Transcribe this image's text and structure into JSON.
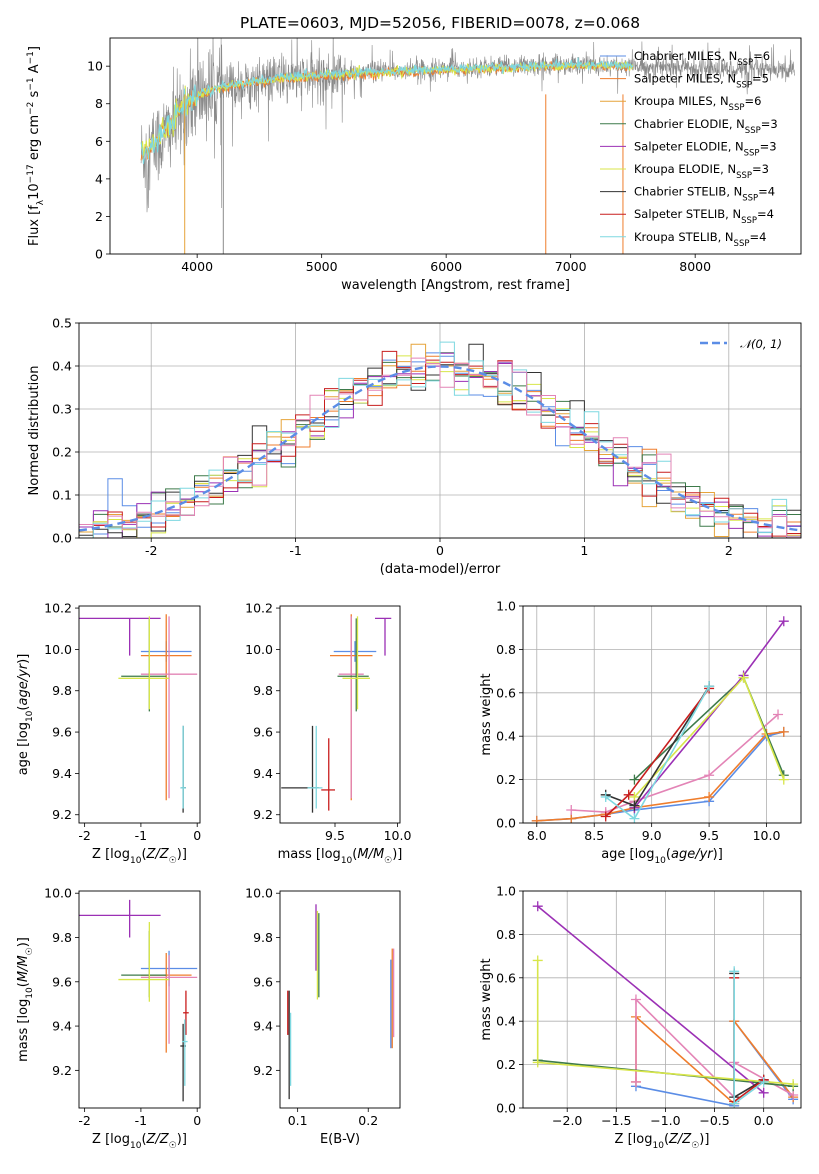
{
  "figure": {
    "title": "PLATE=0603, MJD=52056, FIBERID=0078, z=0.068"
  },
  "colors": {
    "chabrier_miles": "#5b8de6",
    "salpeter_miles": "#ef7d2c",
    "kroupa_miles": "#e6a43a",
    "chabrier_elodie": "#3d7a4a",
    "salpeter_elodie": "#9b30b5",
    "kroupa_elodie": "#d8e64a",
    "chabrier_stelib": "#333333",
    "salpeter_stelib": "#c81e1e",
    "kroupa_stelib": "#7ed8e0",
    "spectrum": "#8a8a8a",
    "pink": "#e384b6",
    "gauss": "#5b8de6",
    "grid": "#b0b0b0"
  },
  "chart_data": [
    {
      "id": "spectrum",
      "type": "line",
      "title": "PLATE=0603, MJD=52056, FIBERID=0078, z=0.068",
      "xlabel": "wavelength [Angstrom, rest frame]",
      "ylabel": "Flux [fλ10⁻¹⁷ erg cm⁻² s⁻¹ A⁻¹]",
      "xlim": [
        3300,
        8850
      ],
      "ylim": [
        0,
        11.5
      ],
      "xticks": [
        4000,
        5000,
        6000,
        7000,
        8000
      ],
      "yticks": [
        0,
        2,
        4,
        6,
        8,
        10
      ],
      "grid": false,
      "legend_position": "top-right",
      "legend": [
        {
          "label": "Chabrier MILES, N",
          "sub": "SSP",
          "suffix": "=6",
          "color_key": "chabrier_miles"
        },
        {
          "label": "Salpeter MILES, N",
          "sub": "SSP",
          "suffix": "=5",
          "color_key": "salpeter_miles"
        },
        {
          "label": "Kroupa MILES, N",
          "sub": "SSP",
          "suffix": "=6",
          "color_key": "kroupa_miles"
        },
        {
          "label": "Chabrier ELODIE, N",
          "sub": "SSP",
          "suffix": "=3",
          "color_key": "chabrier_elodie"
        },
        {
          "label": "Salpeter ELODIE, N",
          "sub": "SSP",
          "suffix": "=3",
          "color_key": "salpeter_elodie"
        },
        {
          "label": "Kroupa ELODIE, N",
          "sub": "SSP",
          "suffix": "=3",
          "color_key": "kroupa_elodie"
        },
        {
          "label": "Chabrier STELIB, N",
          "sub": "SSP",
          "suffix": "=4",
          "color_key": "chabrier_stelib"
        },
        {
          "label": "Salpeter STELIB, N",
          "sub": "SSP",
          "suffix": "=4",
          "color_key": "salpeter_stelib"
        },
        {
          "label": "Kroupa STELIB, N",
          "sub": "SSP",
          "suffix": "=4",
          "color_key": "kroupa_stelib"
        }
      ],
      "observed_spectrum_envelope": {
        "x": [
          3550,
          3700,
          3850,
          4000,
          4200,
          4500,
          5000,
          5500,
          6000,
          6500,
          7000,
          7500,
          8000,
          8500,
          8800
        ],
        "y": [
          5.2,
          6.0,
          7.2,
          8.4,
          8.8,
          9.2,
          9.5,
          9.7,
          9.9,
          10.0,
          10.1,
          10.0,
          9.9,
          9.8,
          9.7
        ]
      },
      "model_spectrum": {
        "x": [
          3550,
          3650,
          3750,
          3850,
          3950,
          4050,
          4200,
          4400,
          4600,
          4800,
          5000,
          5300,
          5600,
          6000,
          6400,
          6800,
          7200,
          7500
        ],
        "y": [
          5.3,
          5.9,
          6.6,
          7.6,
          8.2,
          8.6,
          8.9,
          9.1,
          9.3,
          9.4,
          9.5,
          9.6,
          9.7,
          9.8,
          9.9,
          10.0,
          10.05,
          10.0
        ]
      }
    },
    {
      "id": "residuals",
      "type": "histogram",
      "xlabel": "(data-model)/error",
      "ylabel": "Normed distribution",
      "xlim": [
        -2.5,
        2.5
      ],
      "ylim": [
        0,
        0.5
      ],
      "xticks": [
        -2,
        -1,
        0,
        1,
        2
      ],
      "yticks": [
        0.0,
        0.1,
        0.2,
        0.3,
        0.4,
        0.5
      ],
      "grid": true,
      "legend_position": "top-right",
      "legend": [
        {
          "label": "𝒩(0, 1)",
          "style": "dashed",
          "color_key": "gauss"
        }
      ],
      "bin_width": 0.1,
      "n_models": 9
    },
    {
      "id": "age_vs_Z",
      "type": "errorbar",
      "xlabel": "Z [log10(Z/Z☉)]",
      "ylabel": "age [log10(age/yr)]",
      "xlim": [
        -2.1,
        0.05
      ],
      "ylim": [
        9.16,
        10.21
      ],
      "xticks": [
        -2,
        -1,
        0
      ],
      "yticks": [
        9.2,
        9.4,
        9.6,
        9.8,
        10.0,
        10.2
      ],
      "points": [
        {
          "x": -0.55,
          "y": 9.99,
          "xerr": [
            0.45,
            0.45
          ],
          "yerr": [
            0.05,
            0.05
          ],
          "color_key": "chabrier_miles"
        },
        {
          "x": -0.55,
          "y": 9.97,
          "xerr": [
            0.45,
            0.45
          ],
          "yerr": [
            0.7,
            0.2
          ],
          "color_key": "salpeter_miles"
        },
        {
          "x": -0.5,
          "y": 9.88,
          "xerr": [
            0.5,
            0.5
          ],
          "yerr": [
            0.6,
            0.28
          ],
          "color_key": "pink"
        },
        {
          "x": -0.85,
          "y": 9.87,
          "xerr": [
            0.5,
            0.3
          ],
          "yerr": [
            0.17,
            0.28
          ],
          "color_key": "chabrier_elodie"
        },
        {
          "x": -1.2,
          "y": 10.15,
          "xerr": [
            0.9,
            0.55
          ],
          "yerr": [
            0.18,
            0.0
          ],
          "color_key": "salpeter_elodie"
        },
        {
          "x": -0.85,
          "y": 9.86,
          "xerr": [
            0.55,
            0.35
          ],
          "yerr": [
            0.15,
            0.3
          ],
          "color_key": "kroupa_elodie"
        },
        {
          "x": -0.25,
          "y": 9.33,
          "xerr": [
            0.03,
            0.05
          ],
          "yerr": [
            0.12,
            0.3
          ],
          "color_key": "chabrier_stelib"
        },
        {
          "x": -0.25,
          "y": 9.33,
          "xerr": [
            0.05,
            0.05
          ],
          "yerr": [
            0.1,
            0.3
          ],
          "color_key": "kroupa_stelib"
        }
      ]
    },
    {
      "id": "age_vs_mass",
      "type": "errorbar",
      "xlabel": "mass [log10(M/M☉)]",
      "ylabel": "",
      "xlim": [
        9.06,
        10.02
      ],
      "ylim": [
        9.16,
        10.21
      ],
      "xticks": [
        9.5,
        10.0
      ],
      "yticks": [
        9.2,
        9.4,
        9.6,
        9.8,
        10.0,
        10.2
      ],
      "points": [
        {
          "x": 9.66,
          "y": 9.99,
          "xerr": [
            0.17,
            0.17
          ],
          "yerr": [
            0.05,
            0.05
          ],
          "color_key": "chabrier_miles"
        },
        {
          "x": 9.63,
          "y": 9.97,
          "xerr": [
            0.17,
            0.17
          ],
          "yerr": [
            0.7,
            0.2
          ],
          "color_key": "salpeter_miles"
        },
        {
          "x": 9.63,
          "y": 9.88,
          "xerr": [
            0.1,
            0.1
          ],
          "yerr": [
            0.6,
            0.28
          ],
          "color_key": "pink"
        },
        {
          "x": 9.67,
          "y": 9.87,
          "xerr": [
            0.15,
            0.1
          ],
          "yerr": [
            0.17,
            0.28
          ],
          "color_key": "chabrier_elodie"
        },
        {
          "x": 9.9,
          "y": 10.15,
          "xerr": [
            0.08,
            0.05
          ],
          "yerr": [
            0.18,
            0.0
          ],
          "color_key": "salpeter_elodie"
        },
        {
          "x": 9.68,
          "y": 9.86,
          "xerr": [
            0.12,
            0.1
          ],
          "yerr": [
            0.15,
            0.3
          ],
          "color_key": "kroupa_elodie"
        },
        {
          "x": 9.32,
          "y": 9.33,
          "xerr": [
            0.25,
            0.05
          ],
          "yerr": [
            0.12,
            0.3
          ],
          "color_key": "chabrier_stelib"
        },
        {
          "x": 9.45,
          "y": 9.32,
          "xerr": [
            0.06,
            0.05
          ],
          "yerr": [
            0.1,
            0.25
          ],
          "color_key": "salpeter_stelib"
        },
        {
          "x": 9.35,
          "y": 9.33,
          "xerr": [
            0.07,
            0.05
          ],
          "yerr": [
            0.1,
            0.3
          ],
          "color_key": "kroupa_stelib"
        }
      ]
    },
    {
      "id": "weight_vs_age",
      "type": "line",
      "xlabel": "age [log10(age/yr)]",
      "ylabel": "mass weight",
      "xlim": [
        7.88,
        10.3
      ],
      "ylim": [
        0,
        1.0
      ],
      "xticks": [
        8.0,
        8.5,
        9.0,
        9.5,
        10.0
      ],
      "yticks": [
        0.0,
        0.2,
        0.4,
        0.6,
        0.8,
        1.0
      ],
      "grid": true,
      "series": [
        {
          "color_key": "chabrier_miles",
          "x": [
            8.0,
            8.3,
            8.6,
            8.85,
            9.5,
            10.0,
            10.15
          ],
          "y": [
            0.01,
            0.02,
            0.04,
            0.06,
            0.1,
            0.4,
            0.42
          ]
        },
        {
          "color_key": "salpeter_miles",
          "x": [
            8.0,
            8.3,
            8.6,
            8.85,
            9.5,
            10.0,
            10.15
          ],
          "y": [
            0.01,
            0.02,
            0.04,
            0.07,
            0.12,
            0.41,
            0.42
          ]
        },
        {
          "color_key": "pink",
          "x": [
            8.3,
            8.6,
            8.85,
            9.5,
            10.1
          ],
          "y": [
            0.06,
            0.05,
            0.1,
            0.22,
            0.5
          ]
        },
        {
          "color_key": "chabrier_elodie",
          "x": [
            8.85,
            9.8,
            10.15
          ],
          "y": [
            0.2,
            0.67,
            0.22
          ]
        },
        {
          "color_key": "salpeter_elodie",
          "x": [
            8.85,
            9.8,
            10.15
          ],
          "y": [
            0.07,
            0.68,
            0.93
          ]
        },
        {
          "color_key": "kroupa_elodie",
          "x": [
            8.85,
            9.8,
            10.15
          ],
          "y": [
            0.12,
            0.67,
            0.2
          ]
        },
        {
          "color_key": "chabrier_stelib",
          "x": [
            8.6,
            8.85,
            9.5
          ],
          "y": [
            0.13,
            0.08,
            0.63
          ]
        },
        {
          "color_key": "salpeter_stelib",
          "x": [
            8.6,
            8.8,
            9.5
          ],
          "y": [
            0.03,
            0.13,
            0.62
          ]
        },
        {
          "color_key": "kroupa_stelib",
          "x": [
            8.6,
            8.85,
            9.5
          ],
          "y": [
            0.12,
            0.02,
            0.63
          ]
        }
      ]
    },
    {
      "id": "mass_vs_Z",
      "type": "errorbar",
      "xlabel": "Z [log10(Z/Z☉)]",
      "ylabel": "mass [log10(M/M☉)]",
      "xlim": [
        -2.1,
        0.05
      ],
      "ylim": [
        9.03,
        10.01
      ],
      "xticks": [
        -2,
        -1,
        0
      ],
      "yticks": [
        9.2,
        9.4,
        9.6,
        9.8,
        10.0
      ],
      "points": [
        {
          "x": -0.5,
          "y": 9.66,
          "xerr": [
            0.5,
            0.5
          ],
          "yerr": [
            0.08,
            0.08
          ],
          "color_key": "chabrier_miles"
        },
        {
          "x": -0.55,
          "y": 9.63,
          "xerr": [
            0.45,
            0.45
          ],
          "yerr": [
            0.35,
            0.1
          ],
          "color_key": "salpeter_miles"
        },
        {
          "x": -0.5,
          "y": 9.62,
          "xerr": [
            0.5,
            0.5
          ],
          "yerr": [
            0.3,
            0.1
          ],
          "color_key": "pink"
        },
        {
          "x": -0.85,
          "y": 9.63,
          "xerr": [
            0.5,
            0.3
          ],
          "yerr": [
            0.1,
            0.2
          ],
          "color_key": "chabrier_elodie"
        },
        {
          "x": -1.2,
          "y": 9.9,
          "xerr": [
            0.9,
            0.55
          ],
          "yerr": [
            0.1,
            0.07
          ],
          "color_key": "salpeter_elodie"
        },
        {
          "x": -0.85,
          "y": 9.61,
          "xerr": [
            0.55,
            0.35
          ],
          "yerr": [
            0.1,
            0.26
          ],
          "color_key": "kroupa_elodie"
        },
        {
          "x": -0.25,
          "y": 9.31,
          "xerr": [
            0.05,
            0.05
          ],
          "yerr": [
            0.25,
            0.1
          ],
          "color_key": "chabrier_stelib"
        },
        {
          "x": -0.2,
          "y": 9.46,
          "xerr": [
            0.05,
            0.05
          ],
          "yerr": [
            0.1,
            0.1
          ],
          "color_key": "salpeter_stelib"
        },
        {
          "x": -0.22,
          "y": 9.33,
          "xerr": [
            0.05,
            0.05
          ],
          "yerr": [
            0.2,
            0.1
          ],
          "color_key": "kroupa_stelib"
        }
      ]
    },
    {
      "id": "mass_vs_ebv",
      "type": "errorbar",
      "xlabel": "E(B-V)",
      "ylabel": "",
      "xlim": [
        0.075,
        0.245
      ],
      "ylim": [
        9.03,
        10.01
      ],
      "xticks": [
        0.1,
        0.2
      ],
      "yticks": [
        9.2,
        9.4,
        9.6,
        9.8,
        10.0
      ],
      "points": [
        {
          "x": 0.234,
          "y": 9.5,
          "xerr": [
            0,
            0
          ],
          "yerr": [
            0.2,
            0.25
          ],
          "color_key": "salpeter_miles"
        },
        {
          "x": 0.232,
          "y": 9.5,
          "xerr": [
            0,
            0
          ],
          "yerr": [
            0.2,
            0.2
          ],
          "color_key": "chabrier_miles"
        },
        {
          "x": 0.236,
          "y": 9.55,
          "xerr": [
            0,
            0
          ],
          "yerr": [
            0.2,
            0.2
          ],
          "color_key": "pink"
        },
        {
          "x": 0.126,
          "y": 9.8,
          "xerr": [
            0,
            0
          ],
          "yerr": [
            0.15,
            0.15
          ],
          "color_key": "salpeter_elodie"
        },
        {
          "x": 0.13,
          "y": 9.73,
          "xerr": [
            0,
            0
          ],
          "yerr": [
            0.2,
            0.18
          ],
          "color_key": "chabrier_elodie"
        },
        {
          "x": 0.128,
          "y": 9.72,
          "xerr": [
            0,
            0
          ],
          "yerr": [
            0.2,
            0.2
          ],
          "color_key": "kroupa_elodie"
        },
        {
          "x": 0.088,
          "y": 9.32,
          "xerr": [
            0,
            0
          ],
          "yerr": [
            0.25,
            0.24
          ],
          "color_key": "chabrier_stelib"
        },
        {
          "x": 0.086,
          "y": 9.46,
          "xerr": [
            0,
            0
          ],
          "yerr": [
            0.1,
            0.1
          ],
          "color_key": "salpeter_stelib"
        },
        {
          "x": 0.09,
          "y": 9.33,
          "xerr": [
            0,
            0
          ],
          "yerr": [
            0.2,
            0.13
          ],
          "color_key": "kroupa_stelib"
        }
      ]
    },
    {
      "id": "weight_vs_Z",
      "type": "line",
      "xlabel": "Z [log10(Z/Z☉)]",
      "ylabel": "mass weight",
      "xlim": [
        -2.45,
        0.38
      ],
      "ylim": [
        0,
        1.0
      ],
      "xticks": [
        -2.0,
        -1.5,
        -1.0,
        -0.5,
        0.0
      ],
      "yticks": [
        0.0,
        0.2,
        0.4,
        0.6,
        0.8,
        1.0
      ],
      "grid": true,
      "series": [
        {
          "color_key": "chabrier_miles",
          "x": [
            -1.3,
            -0.3,
            -0.3,
            0.3
          ],
          "y": [
            0.1,
            0.01,
            0.4,
            0.04
          ]
        },
        {
          "color_key": "salpeter_miles",
          "x": [
            -1.3,
            -1.3,
            -0.3,
            -0.3,
            0.3
          ],
          "y": [
            0.12,
            0.42,
            0.02,
            0.4,
            0.05
          ]
        },
        {
          "color_key": "pink",
          "x": [
            -1.3,
            -1.3,
            -0.3,
            -0.3,
            0.3
          ],
          "y": [
            0.12,
            0.5,
            0.05,
            0.21,
            0.06
          ]
        },
        {
          "color_key": "chabrier_elodie",
          "x": [
            -2.3,
            0.3
          ],
          "y": [
            0.22,
            0.1
          ]
        },
        {
          "color_key": "salpeter_elodie",
          "x": [
            -2.3,
            0.0
          ],
          "y": [
            0.93,
            0.07
          ]
        },
        {
          "color_key": "kroupa_elodie",
          "x": [
            -2.3,
            -2.3,
            0.3
          ],
          "y": [
            0.68,
            0.21,
            0.11
          ]
        },
        {
          "color_key": "chabrier_stelib",
          "x": [
            -0.3,
            -0.3,
            0.0
          ],
          "y": [
            0.62,
            0.05,
            0.13
          ]
        },
        {
          "color_key": "salpeter_stelib",
          "x": [
            -0.3,
            -0.3,
            0.0
          ],
          "y": [
            0.6,
            0.03,
            0.13
          ]
        },
        {
          "color_key": "kroupa_stelib",
          "x": [
            -0.3,
            -0.3,
            0.0
          ],
          "y": [
            0.63,
            0.02,
            0.12
          ]
        }
      ]
    }
  ]
}
